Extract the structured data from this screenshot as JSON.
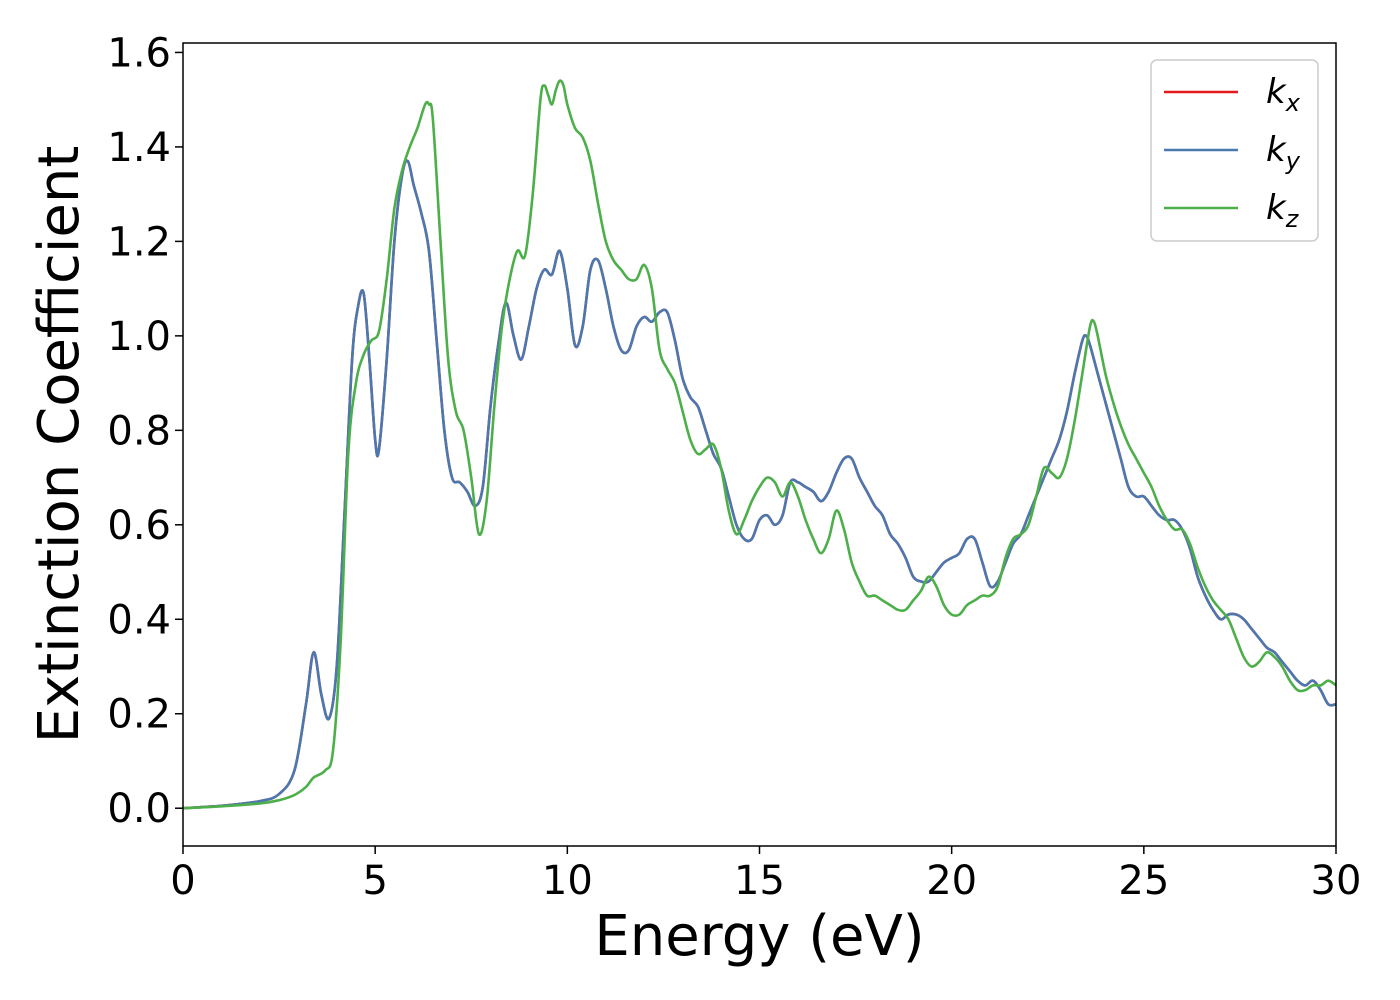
{
  "chart_data": {
    "type": "line",
    "title": "",
    "xlabel": "Energy (eV)",
    "ylabel": "Extinction Coefficient",
    "xlim": [
      0,
      30
    ],
    "ylim": [
      -0.08,
      1.62
    ],
    "xticks": [
      0,
      5,
      10,
      15,
      20,
      25,
      30
    ],
    "yticks": [
      0.0,
      0.2,
      0.4,
      0.6,
      0.8,
      1.0,
      1.2,
      1.4,
      1.6
    ],
    "grid": false,
    "legend": {
      "position": "top-right",
      "entries": [
        {
          "base": "k",
          "sub": "x"
        },
        {
          "base": "k",
          "sub": "y"
        },
        {
          "base": "k",
          "sub": "z"
        }
      ]
    },
    "series": [
      {
        "key": "kx",
        "color": "#e41a1c",
        "x": [
          0,
          1,
          2,
          2.5,
          2.9,
          3.2,
          3.4,
          3.6,
          3.8,
          4.0,
          4.2,
          4.4,
          4.55,
          4.7,
          4.85,
          5.0,
          5.1,
          5.3,
          5.5,
          5.7,
          5.85,
          6.0,
          6.2,
          6.4,
          6.6,
          6.8,
          7.0,
          7.2,
          7.4,
          7.6,
          7.8,
          8.0,
          8.2,
          8.4,
          8.6,
          8.8,
          9.0,
          9.2,
          9.4,
          9.6,
          9.8,
          10.0,
          10.2,
          10.4,
          10.6,
          10.8,
          11.0,
          11.2,
          11.4,
          11.6,
          11.8,
          12.0,
          12.2,
          12.4,
          12.6,
          12.8,
          13.0,
          13.2,
          13.4,
          13.6,
          13.8,
          14.0,
          14.2,
          14.4,
          14.6,
          14.8,
          15.0,
          15.2,
          15.4,
          15.6,
          15.8,
          16.0,
          16.2,
          16.4,
          16.6,
          16.8,
          17.0,
          17.2,
          17.4,
          17.6,
          17.8,
          18.0,
          18.2,
          18.4,
          18.6,
          18.8,
          19.0,
          19.2,
          19.4,
          19.6,
          19.8,
          20.0,
          20.2,
          20.4,
          20.6,
          20.8,
          21.0,
          21.2,
          21.4,
          21.6,
          21.8,
          22.0,
          22.2,
          22.4,
          22.6,
          22.8,
          23.0,
          23.2,
          23.4,
          23.5,
          23.6,
          23.8,
          24.0,
          24.2,
          24.4,
          24.6,
          24.8,
          25.0,
          25.2,
          25.4,
          25.6,
          25.8,
          26.0,
          26.2,
          26.4,
          26.6,
          26.8,
          27.0,
          27.2,
          27.4,
          27.6,
          27.8,
          28.0,
          28.2,
          28.4,
          28.6,
          28.8,
          29.0,
          29.2,
          29.4,
          29.6,
          29.8,
          30.0
        ],
        "y": [
          0.0,
          0.005,
          0.015,
          0.03,
          0.08,
          0.22,
          0.33,
          0.24,
          0.19,
          0.3,
          0.62,
          0.95,
          1.06,
          1.09,
          0.95,
          0.78,
          0.76,
          0.95,
          1.2,
          1.34,
          1.37,
          1.32,
          1.26,
          1.18,
          0.99,
          0.8,
          0.7,
          0.69,
          0.67,
          0.64,
          0.68,
          0.85,
          0.98,
          1.07,
          1.0,
          0.95,
          1.02,
          1.1,
          1.14,
          1.13,
          1.18,
          1.1,
          0.98,
          1.02,
          1.14,
          1.16,
          1.1,
          1.02,
          0.97,
          0.97,
          1.02,
          1.04,
          1.03,
          1.05,
          1.05,
          0.99,
          0.91,
          0.87,
          0.85,
          0.8,
          0.75,
          0.72,
          0.66,
          0.6,
          0.57,
          0.57,
          0.61,
          0.62,
          0.6,
          0.62,
          0.69,
          0.69,
          0.68,
          0.67,
          0.65,
          0.67,
          0.71,
          0.74,
          0.74,
          0.7,
          0.67,
          0.64,
          0.62,
          0.58,
          0.56,
          0.53,
          0.49,
          0.48,
          0.48,
          0.5,
          0.52,
          0.53,
          0.54,
          0.57,
          0.57,
          0.52,
          0.47,
          0.48,
          0.52,
          0.56,
          0.58,
          0.62,
          0.66,
          0.7,
          0.74,
          0.78,
          0.84,
          0.92,
          0.99,
          1.0,
          0.98,
          0.92,
          0.86,
          0.8,
          0.74,
          0.68,
          0.66,
          0.66,
          0.64,
          0.62,
          0.61,
          0.61,
          0.59,
          0.55,
          0.49,
          0.45,
          0.42,
          0.4,
          0.41,
          0.41,
          0.4,
          0.38,
          0.36,
          0.34,
          0.33,
          0.31,
          0.29,
          0.27,
          0.26,
          0.27,
          0.25,
          0.22,
          0.22
        ]
      },
      {
        "key": "ky",
        "color": "#4a79b0",
        "x": [
          0,
          1,
          2,
          2.5,
          2.9,
          3.2,
          3.4,
          3.6,
          3.8,
          4.0,
          4.2,
          4.4,
          4.55,
          4.7,
          4.85,
          5.0,
          5.1,
          5.3,
          5.5,
          5.7,
          5.85,
          6.0,
          6.2,
          6.4,
          6.6,
          6.8,
          7.0,
          7.2,
          7.4,
          7.6,
          7.8,
          8.0,
          8.2,
          8.4,
          8.6,
          8.8,
          9.0,
          9.2,
          9.4,
          9.6,
          9.8,
          10.0,
          10.2,
          10.4,
          10.6,
          10.8,
          11.0,
          11.2,
          11.4,
          11.6,
          11.8,
          12.0,
          12.2,
          12.4,
          12.6,
          12.8,
          13.0,
          13.2,
          13.4,
          13.6,
          13.8,
          14.0,
          14.2,
          14.4,
          14.6,
          14.8,
          15.0,
          15.2,
          15.4,
          15.6,
          15.8,
          16.0,
          16.2,
          16.4,
          16.6,
          16.8,
          17.0,
          17.2,
          17.4,
          17.6,
          17.8,
          18.0,
          18.2,
          18.4,
          18.6,
          18.8,
          19.0,
          19.2,
          19.4,
          19.6,
          19.8,
          20.0,
          20.2,
          20.4,
          20.6,
          20.8,
          21.0,
          21.2,
          21.4,
          21.6,
          21.8,
          22.0,
          22.2,
          22.4,
          22.6,
          22.8,
          23.0,
          23.2,
          23.4,
          23.5,
          23.6,
          23.8,
          24.0,
          24.2,
          24.4,
          24.6,
          24.8,
          25.0,
          25.2,
          25.4,
          25.6,
          25.8,
          26.0,
          26.2,
          26.4,
          26.6,
          26.8,
          27.0,
          27.2,
          27.4,
          27.6,
          27.8,
          28.0,
          28.2,
          28.4,
          28.6,
          28.8,
          29.0,
          29.2,
          29.4,
          29.6,
          29.8,
          30.0
        ],
        "y": [
          0.0,
          0.005,
          0.015,
          0.03,
          0.08,
          0.22,
          0.33,
          0.24,
          0.19,
          0.3,
          0.62,
          0.95,
          1.06,
          1.09,
          0.95,
          0.78,
          0.76,
          0.95,
          1.2,
          1.34,
          1.37,
          1.32,
          1.26,
          1.18,
          0.99,
          0.8,
          0.7,
          0.69,
          0.67,
          0.64,
          0.68,
          0.85,
          0.98,
          1.07,
          1.0,
          0.95,
          1.02,
          1.1,
          1.14,
          1.13,
          1.18,
          1.1,
          0.98,
          1.02,
          1.14,
          1.16,
          1.1,
          1.02,
          0.97,
          0.97,
          1.02,
          1.04,
          1.03,
          1.05,
          1.05,
          0.99,
          0.91,
          0.87,
          0.85,
          0.8,
          0.75,
          0.72,
          0.66,
          0.6,
          0.57,
          0.57,
          0.61,
          0.62,
          0.6,
          0.62,
          0.69,
          0.69,
          0.68,
          0.67,
          0.65,
          0.67,
          0.71,
          0.74,
          0.74,
          0.7,
          0.67,
          0.64,
          0.62,
          0.58,
          0.56,
          0.53,
          0.49,
          0.48,
          0.48,
          0.5,
          0.52,
          0.53,
          0.54,
          0.57,
          0.57,
          0.52,
          0.47,
          0.48,
          0.52,
          0.56,
          0.58,
          0.62,
          0.66,
          0.7,
          0.74,
          0.78,
          0.84,
          0.92,
          0.99,
          1.0,
          0.98,
          0.92,
          0.86,
          0.8,
          0.74,
          0.68,
          0.66,
          0.66,
          0.64,
          0.62,
          0.61,
          0.61,
          0.59,
          0.55,
          0.49,
          0.45,
          0.42,
          0.4,
          0.41,
          0.41,
          0.4,
          0.38,
          0.36,
          0.34,
          0.33,
          0.31,
          0.29,
          0.27,
          0.26,
          0.27,
          0.25,
          0.22,
          0.22
        ]
      },
      {
        "key": "kz",
        "color": "#4daf4a",
        "x": [
          0,
          1,
          2,
          2.5,
          2.9,
          3.2,
          3.4,
          3.7,
          3.9,
          4.1,
          4.3,
          4.5,
          4.7,
          4.9,
          5.1,
          5.3,
          5.5,
          5.7,
          5.9,
          6.1,
          6.3,
          6.4,
          6.5,
          6.7,
          6.9,
          7.1,
          7.3,
          7.5,
          7.7,
          7.9,
          8.1,
          8.3,
          8.5,
          8.7,
          8.9,
          9.1,
          9.3,
          9.4,
          9.5,
          9.6,
          9.7,
          9.8,
          9.9,
          10.0,
          10.2,
          10.4,
          10.6,
          10.8,
          11.0,
          11.2,
          11.4,
          11.6,
          11.8,
          12.0,
          12.2,
          12.4,
          12.6,
          12.8,
          13.0,
          13.2,
          13.4,
          13.6,
          13.8,
          14.0,
          14.2,
          14.4,
          14.6,
          14.8,
          15.0,
          15.2,
          15.4,
          15.6,
          15.8,
          16.0,
          16.2,
          16.4,
          16.6,
          16.8,
          17.0,
          17.2,
          17.4,
          17.6,
          17.8,
          18.0,
          18.2,
          18.4,
          18.6,
          18.8,
          19.0,
          19.2,
          19.4,
          19.6,
          19.8,
          20.0,
          20.2,
          20.4,
          20.6,
          20.8,
          21.0,
          21.2,
          21.4,
          21.6,
          21.8,
          22.0,
          22.2,
          22.4,
          22.6,
          22.8,
          23.0,
          23.2,
          23.4,
          23.6,
          23.7,
          23.8,
          24.0,
          24.2,
          24.4,
          24.6,
          24.8,
          25.0,
          25.2,
          25.4,
          25.6,
          25.8,
          26.0,
          26.2,
          26.4,
          26.6,
          26.8,
          27.0,
          27.2,
          27.4,
          27.6,
          27.8,
          28.0,
          28.2,
          28.4,
          28.6,
          28.8,
          29.0,
          29.2,
          29.4,
          29.6,
          29.8,
          30.0
        ],
        "y": [
          0.0,
          0.004,
          0.01,
          0.017,
          0.028,
          0.045,
          0.065,
          0.08,
          0.12,
          0.35,
          0.75,
          0.9,
          0.96,
          0.99,
          1.01,
          1.12,
          1.27,
          1.35,
          1.4,
          1.44,
          1.49,
          1.49,
          1.46,
          1.2,
          0.95,
          0.84,
          0.8,
          0.7,
          0.58,
          0.65,
          0.85,
          1.02,
          1.12,
          1.18,
          1.17,
          1.3,
          1.5,
          1.53,
          1.51,
          1.49,
          1.52,
          1.54,
          1.53,
          1.49,
          1.44,
          1.42,
          1.37,
          1.28,
          1.2,
          1.16,
          1.14,
          1.12,
          1.12,
          1.15,
          1.1,
          0.97,
          0.93,
          0.9,
          0.84,
          0.78,
          0.75,
          0.76,
          0.77,
          0.72,
          0.63,
          0.58,
          0.61,
          0.65,
          0.68,
          0.7,
          0.69,
          0.66,
          0.69,
          0.66,
          0.61,
          0.57,
          0.54,
          0.57,
          0.63,
          0.59,
          0.52,
          0.48,
          0.45,
          0.45,
          0.44,
          0.43,
          0.42,
          0.42,
          0.44,
          0.46,
          0.49,
          0.47,
          0.43,
          0.41,
          0.41,
          0.43,
          0.44,
          0.45,
          0.45,
          0.47,
          0.53,
          0.57,
          0.58,
          0.6,
          0.66,
          0.72,
          0.71,
          0.7,
          0.74,
          0.82,
          0.92,
          1.02,
          1.03,
          1.0,
          0.92,
          0.86,
          0.81,
          0.77,
          0.74,
          0.71,
          0.68,
          0.64,
          0.61,
          0.59,
          0.59,
          0.56,
          0.51,
          0.47,
          0.44,
          0.42,
          0.4,
          0.36,
          0.32,
          0.3,
          0.31,
          0.33,
          0.32,
          0.3,
          0.27,
          0.25,
          0.25,
          0.26,
          0.26,
          0.27,
          0.26
        ]
      }
    ]
  }
}
